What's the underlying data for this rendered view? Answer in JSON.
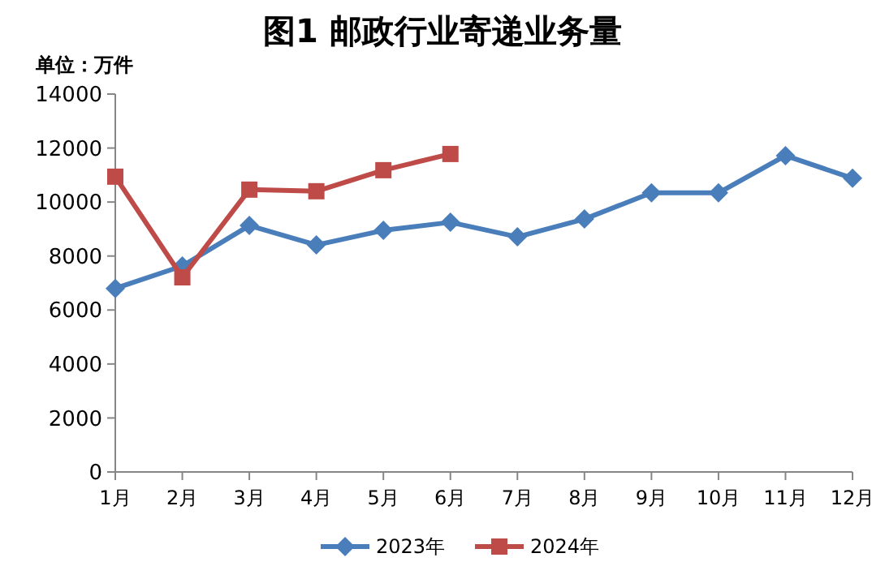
{
  "chart_data": {
    "type": "line",
    "title": "图1  邮政行业寄递业务量",
    "ylabel": "单位：万件",
    "categories": [
      "1月",
      "2月",
      "3月",
      "4月",
      "5月",
      "6月",
      "7月",
      "8月",
      "9月",
      "10月",
      "11月",
      "12月"
    ],
    "series": [
      {
        "name": "2023年",
        "color": "#4a7ebb",
        "marker": "diamond",
        "values": [
          6800,
          7630,
          9130,
          8410,
          8950,
          9250,
          8710,
          9370,
          10340,
          10340,
          11720,
          10880
        ]
      },
      {
        "name": "2024年",
        "color": "#be4b48",
        "marker": "square",
        "values": [
          10940,
          7210,
          10460,
          10400,
          11180,
          11780,
          null,
          null,
          null,
          null,
          null,
          null
        ]
      }
    ],
    "ylim": [
      0,
      14000
    ],
    "yticks": [
      0,
      2000,
      4000,
      6000,
      8000,
      10000,
      12000,
      14000
    ],
    "grid": false,
    "legend": "bottom"
  }
}
